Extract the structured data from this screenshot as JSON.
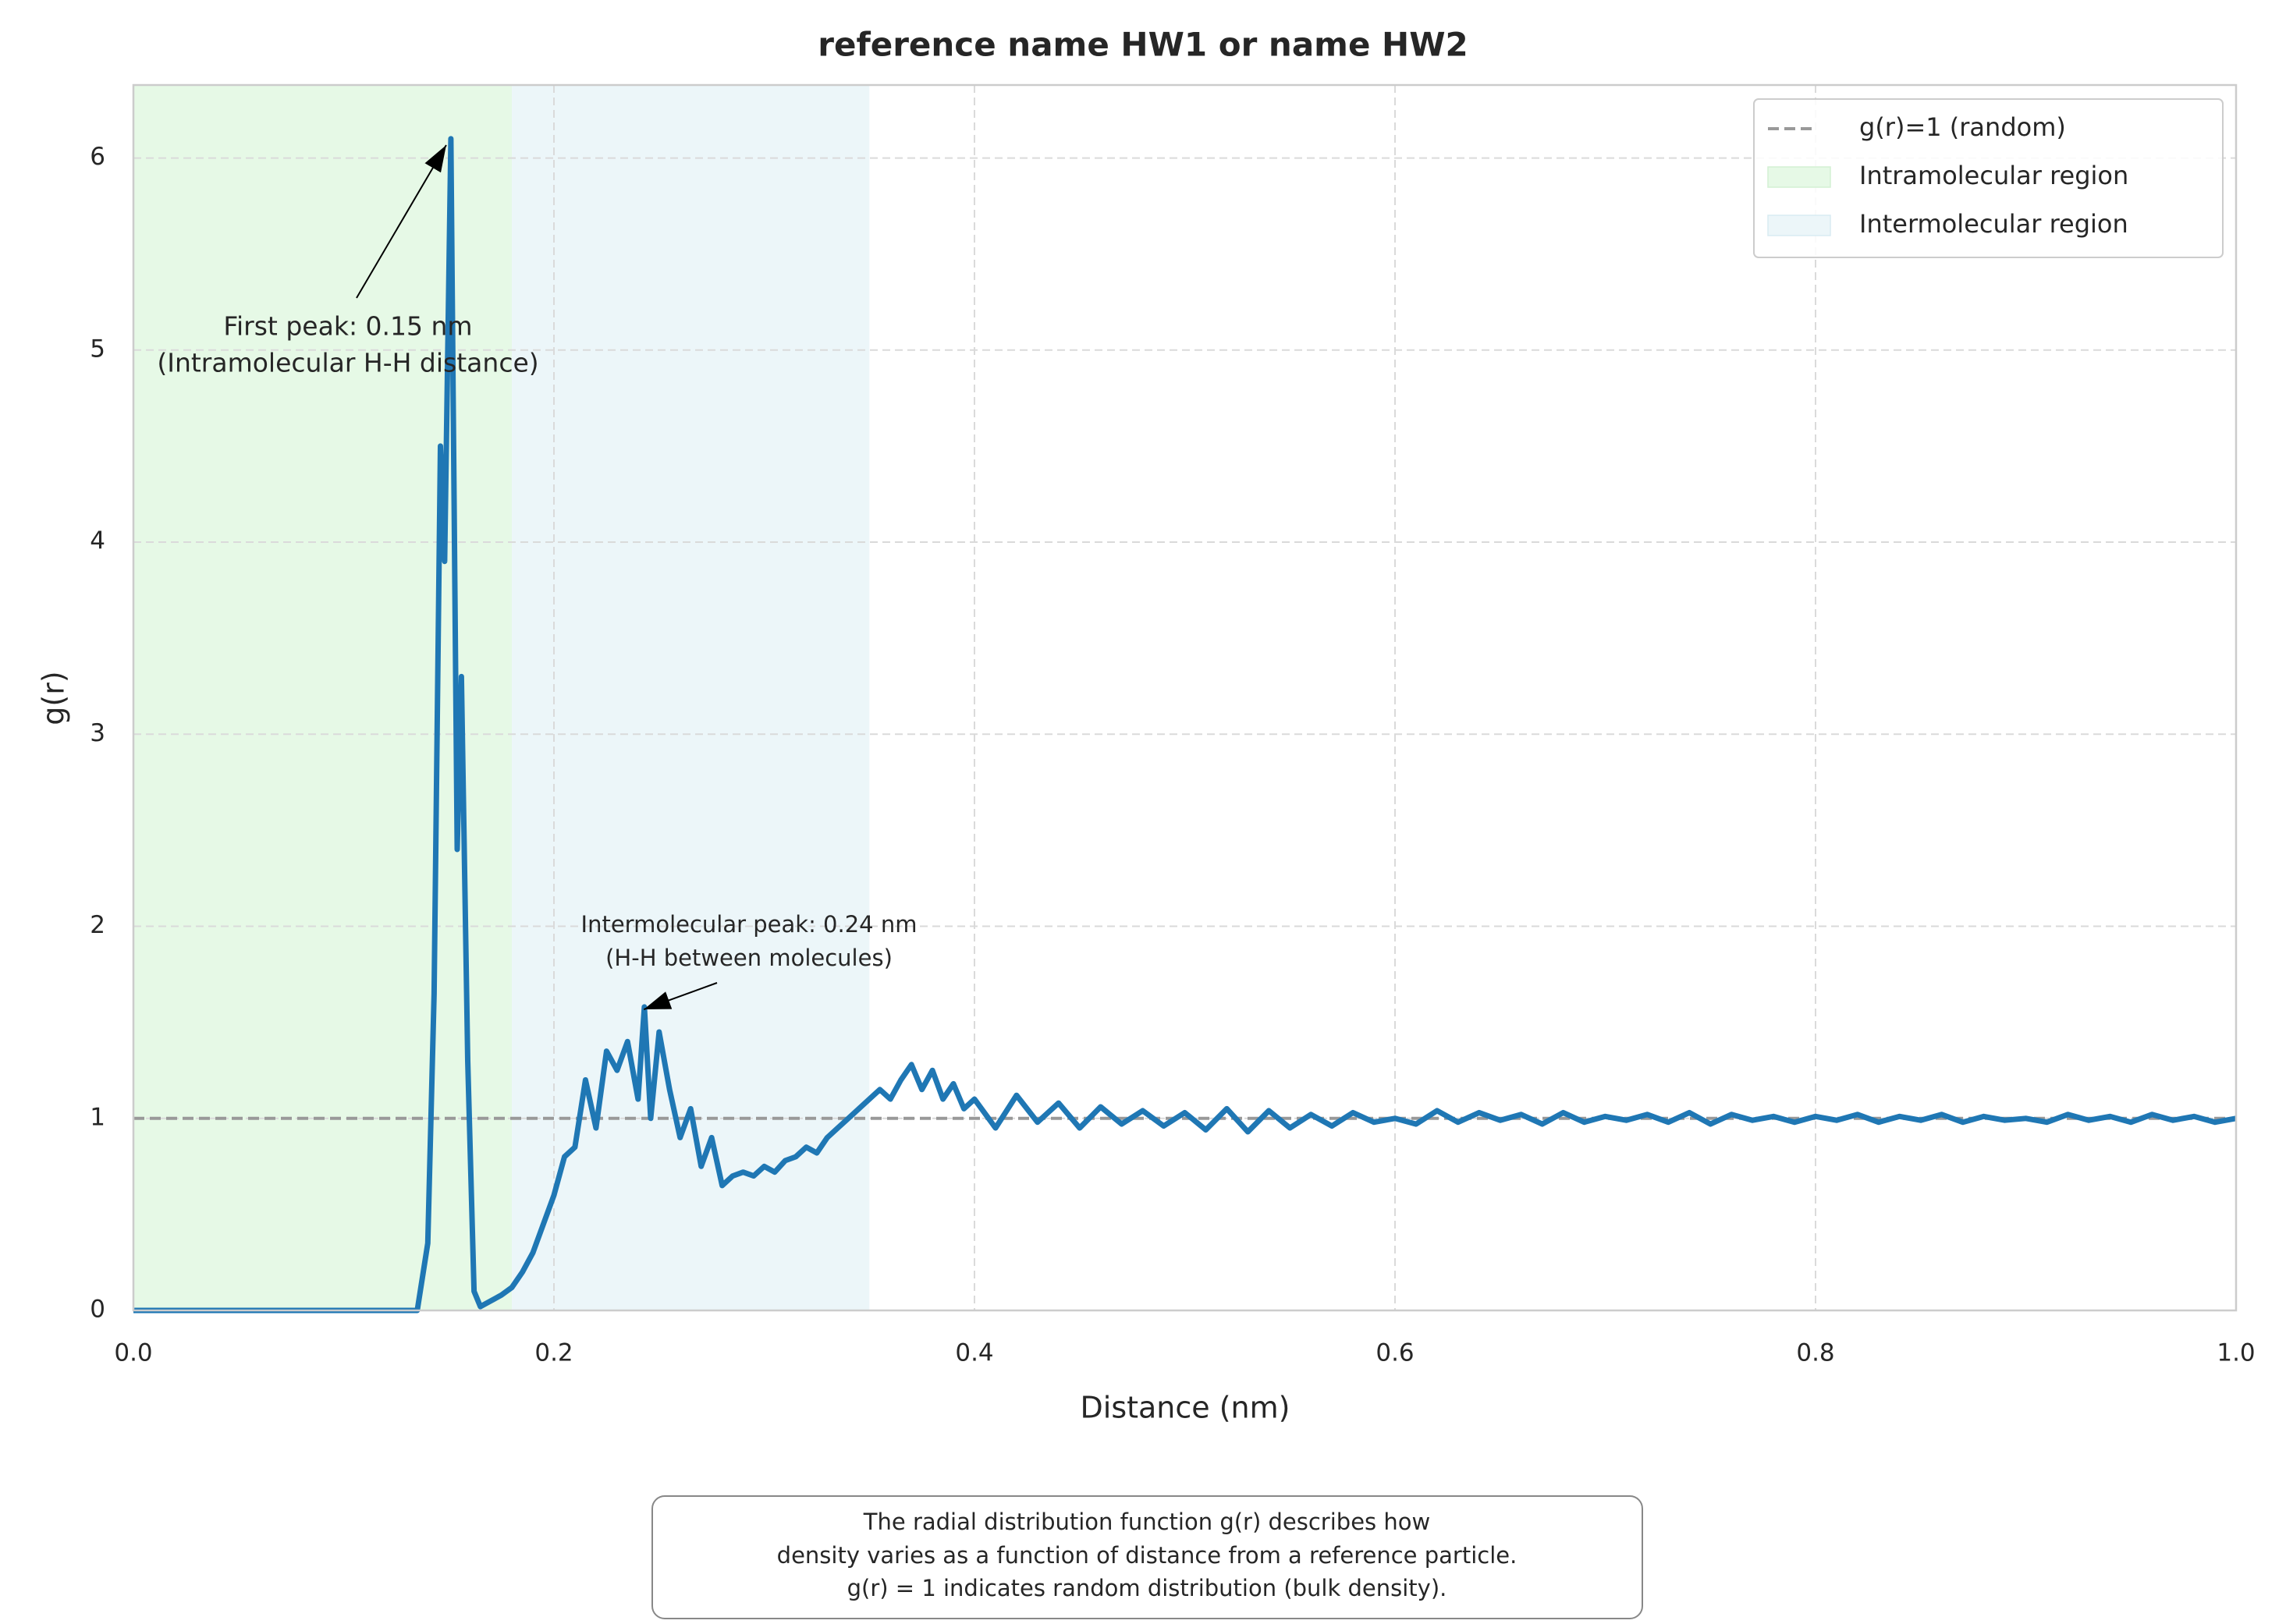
{
  "chart_data": {
    "type": "line",
    "title": "reference name HW1 or name HW2",
    "xlabel": "Distance (nm)",
    "ylabel": "g(r)",
    "x": [
      0,
      0.005,
      0.01,
      0.015,
      0.02,
      0.025,
      0.03,
      0.035,
      0.04,
      0.045,
      0.05,
      0.055,
      0.06,
      0.065,
      0.07,
      0.075,
      0.08,
      0.085,
      0.09,
      0.095,
      0.1,
      0.105,
      0.11,
      0.115,
      0.12,
      0.125,
      0.13,
      0.135,
      0.14,
      0.143,
      0.146,
      0.148,
      0.151,
      0.154,
      0.156,
      0.159,
      0.162,
      0.165,
      0.17,
      0.175,
      0.18,
      0.185,
      0.19,
      0.195,
      0.2,
      0.205,
      0.21,
      0.215,
      0.22,
      0.225,
      0.23,
      0.235,
      0.24,
      0.243,
      0.246,
      0.25,
      0.255,
      0.26,
      0.265,
      0.27,
      0.275,
      0.28,
      0.285,
      0.29,
      0.295,
      0.3,
      0.305,
      0.31,
      0.315,
      0.32,
      0.325,
      0.33,
      0.335,
      0.34,
      0.345,
      0.35,
      0.355,
      0.36,
      0.365,
      0.37,
      0.375,
      0.38,
      0.385,
      0.39,
      0.395,
      0.4,
      0.41,
      0.42,
      0.43,
      0.44,
      0.45,
      0.46,
      0.47,
      0.48,
      0.49,
      0.5,
      0.51,
      0.52,
      0.53,
      0.54,
      0.55,
      0.56,
      0.57,
      0.58,
      0.59,
      0.6,
      0.61,
      0.62,
      0.63,
      0.64,
      0.65,
      0.66,
      0.67,
      0.68,
      0.69,
      0.7,
      0.71,
      0.72,
      0.73,
      0.74,
      0.75,
      0.76,
      0.77,
      0.78,
      0.79,
      0.8,
      0.81,
      0.82,
      0.83,
      0.84,
      0.85,
      0.86,
      0.87,
      0.88,
      0.89,
      0.9,
      0.91,
      0.92,
      0.93,
      0.94,
      0.95,
      0.96,
      0.97,
      0.98,
      0.99,
      1.0
    ],
    "series": [
      {
        "name": "g(r)",
        "color": "#1f77b4",
        "values": [
          0,
          0,
          0,
          0,
          0,
          0,
          0,
          0,
          0,
          0,
          0,
          0,
          0,
          0,
          0,
          0,
          0,
          0,
          0,
          0,
          0,
          0,
          0,
          0,
          0,
          0,
          0,
          0,
          0.35,
          1.65,
          4.5,
          3.9,
          6.1,
          2.4,
          3.3,
          1.3,
          0.1,
          0.02,
          0.05,
          0.08,
          0.12,
          0.2,
          0.3,
          0.45,
          0.6,
          0.8,
          0.85,
          1.2,
          0.95,
          1.35,
          1.25,
          1.4,
          1.1,
          1.58,
          1.0,
          1.45,
          1.15,
          0.9,
          1.05,
          0.75,
          0.9,
          0.65,
          0.7,
          0.72,
          0.7,
          0.75,
          0.72,
          0.78,
          0.8,
          0.85,
          0.82,
          0.9,
          0.95,
          1.0,
          1.05,
          1.1,
          1.15,
          1.1,
          1.2,
          1.28,
          1.15,
          1.25,
          1.1,
          1.18,
          1.05,
          1.1,
          0.95,
          1.12,
          0.98,
          1.08,
          0.95,
          1.06,
          0.97,
          1.04,
          0.96,
          1.03,
          0.94,
          1.05,
          0.93,
          1.04,
          0.95,
          1.02,
          0.96,
          1.03,
          0.98,
          1.0,
          0.97,
          1.04,
          0.98,
          1.03,
          0.99,
          1.02,
          0.97,
          1.03,
          0.98,
          1.01,
          0.99,
          1.02,
          0.98,
          1.03,
          0.97,
          1.02,
          0.99,
          1.01,
          0.98,
          1.01,
          0.99,
          1.02,
          0.98,
          1.01,
          0.99,
          1.02,
          0.98,
          1.01,
          0.99,
          1.0,
          0.98,
          1.02,
          0.99,
          1.01,
          0.98,
          1.02,
          0.99,
          1.01,
          0.98,
          1.0
        ]
      }
    ],
    "reference_line": {
      "name": "g(r)=1 (random)",
      "y": 1,
      "color": "#999999"
    },
    "shaded_regions": [
      {
        "name": "Intramolecular region",
        "xmin": 0,
        "xmax": 0.18,
        "color": "#e6f9e6"
      },
      {
        "name": "Intermolecular region",
        "xmin": 0.18,
        "xmax": 0.35,
        "color": "#ecf6f9"
      }
    ],
    "annotations": [
      {
        "lines": [
          "First peak: 0.15 nm",
          "(Intramolecular H-H distance)"
        ],
        "xy": [
          0.151,
          6.1
        ]
      },
      {
        "lines": [
          "Intermolecular peak: 0.24 nm",
          "(H-H between molecules)"
        ],
        "xy": [
          0.245,
          1.6
        ]
      }
    ],
    "note": [
      "The radial distribution function g(r) describes how",
      "density varies as a function of distance from a reference particle.",
      "g(r) = 1 indicates random distribution (bulk density)."
    ],
    "xlim": [
      0,
      1
    ],
    "ylim": [
      0,
      6.38
    ],
    "xticks": [
      {
        "value": 0,
        "label": "0.0"
      },
      0.2,
      0.4,
      0.6,
      0.8,
      {
        "value": 1,
        "label": "1.0"
      }
    ],
    "yticks": [
      0,
      1,
      2,
      3,
      4,
      5,
      6
    ],
    "grid": true,
    "legend": "upper right"
  }
}
